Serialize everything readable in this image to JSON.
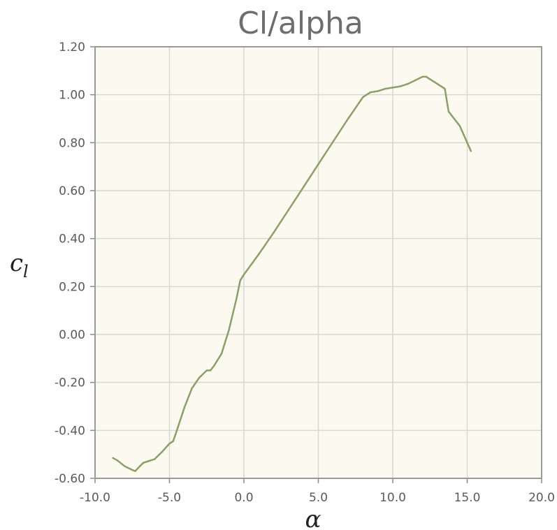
{
  "chart_data": {
    "type": "line",
    "title": "Cl/alpha",
    "xlabel": "α",
    "ylabel": "c",
    "ylabel_subscript": "l",
    "xlim": [
      -10.0,
      20.0
    ],
    "ylim": [
      -0.6,
      1.2
    ],
    "x_ticks": [
      -10.0,
      -5.0,
      0.0,
      5.0,
      10.0,
      15.0,
      20.0
    ],
    "x_tick_labels": [
      "-10.0",
      "-5.0",
      "0.0",
      "5.0",
      "10.0",
      "15.0",
      "20.0"
    ],
    "y_ticks": [
      1.2,
      1.0,
      0.8,
      0.6,
      0.4,
      0.2,
      0.0,
      -0.2,
      -0.4,
      -0.6
    ],
    "y_tick_labels": [
      "1.20",
      "1.00",
      "0.80",
      "0.60",
      "0.40",
      "0.20",
      "0.00",
      "-0.20",
      "-0.40",
      "-0.60"
    ],
    "grid": true,
    "plot_background": "#fcfaf0",
    "line_color": "#8c9f6a",
    "series": [
      {
        "x": [
          -8.8,
          -8.5,
          -8.0,
          -7.5,
          -7.3,
          -7.0,
          -6.75,
          -6.5,
          -6.0,
          -5.5,
          -5.0,
          -4.75,
          -4.5,
          -4.0,
          -3.5,
          -3.0,
          -2.5,
          -2.25,
          -2.0,
          -1.5,
          -1.0,
          -0.5,
          -0.25,
          0.0,
          1.0,
          2.0,
          3.0,
          4.0,
          5.0,
          6.0,
          7.0,
          8.0,
          8.5,
          9.0,
          9.5,
          10.0,
          10.5,
          11.0,
          11.5,
          12.0,
          12.25,
          12.5,
          13.0,
          13.5,
          13.75,
          14.0,
          14.5,
          15.0,
          15.25
        ],
        "y": [
          -0.515,
          -0.525,
          -0.55,
          -0.565,
          -0.57,
          -0.55,
          -0.535,
          -0.53,
          -0.52,
          -0.49,
          -0.455,
          -0.445,
          -0.4,
          -0.305,
          -0.225,
          -0.18,
          -0.15,
          -0.15,
          -0.13,
          -0.08,
          0.02,
          0.15,
          0.225,
          0.25,
          0.335,
          0.425,
          0.52,
          0.615,
          0.71,
          0.805,
          0.9,
          0.99,
          1.01,
          1.015,
          1.025,
          1.03,
          1.035,
          1.045,
          1.06,
          1.075,
          1.075,
          1.065,
          1.045,
          1.025,
          0.93,
          0.91,
          0.87,
          0.8,
          0.765
        ]
      }
    ]
  }
}
